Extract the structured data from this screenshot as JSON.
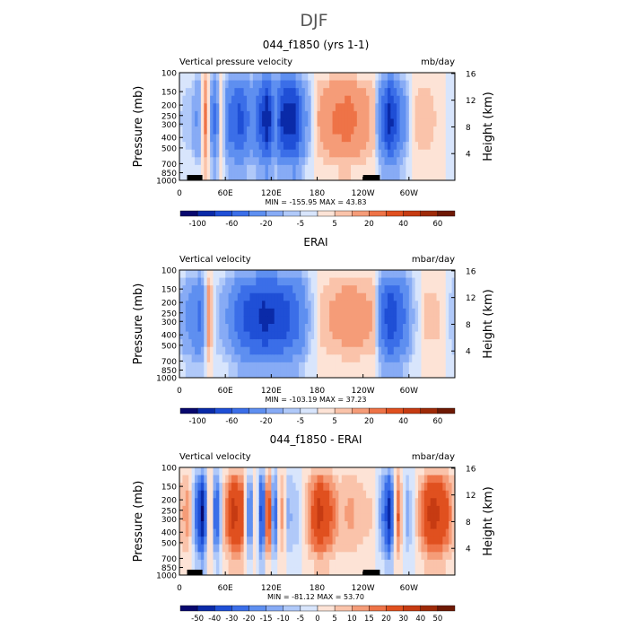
{
  "figure": {
    "title": "DJF"
  },
  "chart_data": [
    {
      "type": "heatmap",
      "title": "044_f1850 (yrs 1-1)",
      "left_label": "Vertical pressure velocity",
      "right_label": "mb/day",
      "ylabel": "Pressure (mb)",
      "y2label": "Height (km)",
      "x_ticks": [
        "0",
        "60E",
        "120E",
        "180",
        "120W",
        "60W"
      ],
      "y_ticks": [
        "100",
        "150",
        "200",
        "250",
        "300",
        "400",
        "500",
        "700",
        "850",
        "1000"
      ],
      "y2_ticks": [
        "4",
        "8",
        "12",
        "16"
      ],
      "stats": "MIN = -155.95   MAX =  43.83",
      "colorbar_labels": [
        "-100",
        "-60",
        "-20",
        "-5",
        "5",
        "20",
        "40",
        "60"
      ],
      "colorbar_levels": [
        -120,
        -100,
        -80,
        -60,
        -40,
        -20,
        -10,
        -5,
        0,
        5,
        10,
        20,
        30,
        40,
        50,
        60,
        80
      ],
      "xlim": [
        0,
        360
      ],
      "ylim": [
        1000,
        100
      ],
      "columns": [
        {
          "lon": 0,
          "v": -4
        },
        {
          "lon": 15,
          "v": -8
        },
        {
          "lon": 25,
          "v": -22
        },
        {
          "lon": 35,
          "v": 25
        },
        {
          "lon": 45,
          "v": -45
        },
        {
          "lon": 55,
          "v": 5
        },
        {
          "lon": 65,
          "v": -40
        },
        {
          "lon": 80,
          "v": -60
        },
        {
          "lon": 95,
          "v": -25
        },
        {
          "lon": 105,
          "v": -55
        },
        {
          "lon": 115,
          "v": -90
        },
        {
          "lon": 125,
          "v": -30
        },
        {
          "lon": 135,
          "v": -75
        },
        {
          "lon": 150,
          "v": -80
        },
        {
          "lon": 165,
          "v": -20
        },
        {
          "lon": 180,
          "v": 8
        },
        {
          "lon": 200,
          "v": 18
        },
        {
          "lon": 220,
          "v": 22
        },
        {
          "lon": 240,
          "v": 14
        },
        {
          "lon": 255,
          "v": 6
        },
        {
          "lon": 265,
          "v": -45
        },
        {
          "lon": 275,
          "v": -80
        },
        {
          "lon": 290,
          "v": -30
        },
        {
          "lon": 305,
          "v": 4
        },
        {
          "lon": 320,
          "v": 8
        },
        {
          "lon": 340,
          "v": 3
        },
        {
          "lon": 360,
          "v": -4
        }
      ]
    },
    {
      "type": "heatmap",
      "title": "ERAI",
      "left_label": "Vertical velocity",
      "right_label": "mbar/day",
      "ylabel": "Pressure (mb)",
      "y2label": "Height (km)",
      "x_ticks": [
        "0",
        "60E",
        "120E",
        "180",
        "120W",
        "60W"
      ],
      "y_ticks": [
        "100",
        "150",
        "200",
        "250",
        "300",
        "400",
        "500",
        "700",
        "850",
        "1000"
      ],
      "y2_ticks": [
        "4",
        "8",
        "12",
        "16"
      ],
      "stats": "MIN = -103.19   MAX =  37.23",
      "colorbar_labels": [
        "-100",
        "-60",
        "-20",
        "-5",
        "5",
        "20",
        "40",
        "60"
      ],
      "colorbar_levels": [
        -120,
        -100,
        -80,
        -60,
        -40,
        -20,
        -10,
        -5,
        0,
        5,
        10,
        20,
        30,
        40,
        50,
        60,
        80
      ],
      "xlim": [
        0,
        360
      ],
      "ylim": [
        1000,
        100
      ],
      "columns": [
        {
          "lon": 0,
          "v": -10
        },
        {
          "lon": 15,
          "v": -25
        },
        {
          "lon": 28,
          "v": -40
        },
        {
          "lon": 38,
          "v": 14
        },
        {
          "lon": 50,
          "v": -8
        },
        {
          "lon": 65,
          "v": -20
        },
        {
          "lon": 80,
          "v": -50
        },
        {
          "lon": 95,
          "v": -65
        },
        {
          "lon": 110,
          "v": -75
        },
        {
          "lon": 125,
          "v": -70
        },
        {
          "lon": 140,
          "v": -60
        },
        {
          "lon": 155,
          "v": -40
        },
        {
          "lon": 170,
          "v": -10
        },
        {
          "lon": 185,
          "v": 6
        },
        {
          "lon": 200,
          "v": 10
        },
        {
          "lon": 220,
          "v": 14
        },
        {
          "lon": 240,
          "v": 12
        },
        {
          "lon": 255,
          "v": 8
        },
        {
          "lon": 265,
          "v": -40
        },
        {
          "lon": 275,
          "v": -70
        },
        {
          "lon": 290,
          "v": -45
        },
        {
          "lon": 305,
          "v": -10
        },
        {
          "lon": 320,
          "v": 6
        },
        {
          "lon": 340,
          "v": 5
        },
        {
          "lon": 360,
          "v": -10
        }
      ]
    },
    {
      "type": "heatmap",
      "title": "044_f1850 - ERAI",
      "left_label": "Vertical velocity",
      "right_label": "mbar/day",
      "ylabel": "Pressure (mb)",
      "y2label": "Height (km)",
      "x_ticks": [
        "0",
        "60E",
        "120E",
        "180",
        "120W",
        "60W"
      ],
      "y_ticks": [
        "100",
        "150",
        "200",
        "250",
        "300",
        "400",
        "500",
        "700",
        "850",
        "1000"
      ],
      "y2_ticks": [
        "4",
        "8",
        "12",
        "16"
      ],
      "stats": "MIN = -81.12   MAX =  53.70",
      "colorbar_labels": [
        "-50",
        "-40",
        "-30",
        "-20",
        "-15",
        "-10",
        "-5",
        "0",
        "5",
        "10",
        "15",
        "20",
        "30",
        "40",
        "50"
      ],
      "colorbar_levels": [
        -60,
        -50,
        -40,
        -30,
        -20,
        -15,
        -10,
        -5,
        0,
        5,
        10,
        15,
        20,
        30,
        40,
        50,
        60
      ],
      "xlim": [
        0,
        360
      ],
      "ylim": [
        1000,
        100
      ],
      "columns": [
        {
          "lon": 0,
          "v": 6
        },
        {
          "lon": 12,
          "v": 12
        },
        {
          "lon": 22,
          "v": -20
        },
        {
          "lon": 30,
          "v": -45
        },
        {
          "lon": 40,
          "v": 15
        },
        {
          "lon": 48,
          "v": -30
        },
        {
          "lon": 58,
          "v": 8
        },
        {
          "lon": 70,
          "v": 30
        },
        {
          "lon": 82,
          "v": 22
        },
        {
          "lon": 92,
          "v": -25
        },
        {
          "lon": 100,
          "v": 12
        },
        {
          "lon": 108,
          "v": -40
        },
        {
          "lon": 116,
          "v": 35
        },
        {
          "lon": 124,
          "v": -30
        },
        {
          "lon": 132,
          "v": 15
        },
        {
          "lon": 142,
          "v": -10
        },
        {
          "lon": 155,
          "v": -6
        },
        {
          "lon": 168,
          "v": 10
        },
        {
          "lon": 182,
          "v": 30
        },
        {
          "lon": 196,
          "v": 20
        },
        {
          "lon": 210,
          "v": 8
        },
        {
          "lon": 225,
          "v": 10
        },
        {
          "lon": 240,
          "v": 6
        },
        {
          "lon": 255,
          "v": 4
        },
        {
          "lon": 265,
          "v": -15
        },
        {
          "lon": 275,
          "v": -40
        },
        {
          "lon": 285,
          "v": 20
        },
        {
          "lon": 298,
          "v": -12
        },
        {
          "lon": 312,
          "v": 8
        },
        {
          "lon": 328,
          "v": 30
        },
        {
          "lon": 345,
          "v": 25
        },
        {
          "lon": 360,
          "v": 6
        }
      ]
    }
  ]
}
